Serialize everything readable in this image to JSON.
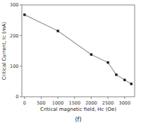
{
  "chart_data": {
    "type": "line",
    "title": "(f)",
    "xlabel": "Critical magnetic field, Hc (Oe)",
    "ylabel": "Critical Current, Ic (mA)",
    "x": [
      0,
      1000,
      2000,
      2500,
      2750,
      3000,
      3200
    ],
    "values": [
      268,
      215,
      138,
      112,
      72,
      55,
      42
    ],
    "color": "#1a1a1a",
    "marker": "square",
    "xlim": [
      -80,
      3300
    ],
    "ylim": [
      0,
      300
    ],
    "xticks": [
      0,
      500,
      1000,
      1500,
      2000,
      2500,
      3000
    ],
    "yticks": [
      0,
      100,
      200,
      300
    ],
    "grid": false
  }
}
